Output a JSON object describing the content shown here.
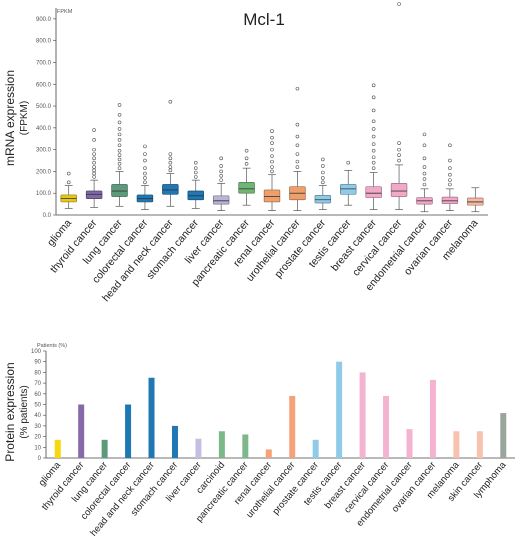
{
  "chart_data": [
    {
      "type": "box",
      "title": "Mcl-1",
      "ylabel": "mRNA expression",
      "yunit": "(FPKM)",
      "axis_unit": "FPKM",
      "ylim": [
        0,
        950
      ],
      "yticks": [
        "900.0",
        "800.0",
        "700.0",
        "600.0",
        "500.0",
        "400.0",
        "300.0",
        "200.0",
        "100.0",
        "0.0"
      ],
      "categories": [
        "glioma",
        "thyroid cancer",
        "lung cancer",
        "colorectal cancer",
        "head and neck cancer",
        "stomach cancer",
        "liver cancer",
        "pancreatic cancer",
        "renal cancer",
        "urothelial cancer",
        "prostate cancer",
        "testis cancer",
        "breast cancer",
        "cervical cancer",
        "endometrial cancer",
        "ovarian cancer",
        "melanoma"
      ],
      "colors": [
        "#e6c619",
        "#7f68a8",
        "#5d9a7c",
        "#1f78b4",
        "#1f78b4",
        "#1f78b4",
        "#b9b4d8",
        "#6fb575",
        "#ef9f6b",
        "#ef9f6b",
        "#8fcbe8",
        "#8fcbe8",
        "#f2a9c8",
        "#f2a9c8",
        "#f2a9c8",
        "#f2a9c8",
        "#f5b8a0"
      ],
      "boxes": [
        {
          "whislo": 30,
          "q1": 60,
          "med": 75,
          "q3": 92,
          "whishi": 135,
          "fliers": [
            150,
            190
          ]
        },
        {
          "whislo": 35,
          "q1": 75,
          "med": 95,
          "q3": 110,
          "whishi": 160,
          "fliers": [
            175,
            190,
            205,
            220,
            240,
            260,
            280,
            300,
            345,
            390
          ]
        },
        {
          "whislo": 40,
          "q1": 85,
          "med": 110,
          "q3": 140,
          "whishi": 200,
          "fliers": [
            215,
            235,
            255,
            275,
            295,
            320,
            345,
            370,
            395,
            425,
            460,
            505
          ]
        },
        {
          "whislo": 25,
          "q1": 60,
          "med": 75,
          "q3": 92,
          "whishi": 135,
          "fliers": [
            150,
            170,
            190,
            215,
            250,
            280,
            315
          ]
        },
        {
          "whislo": 40,
          "q1": 95,
          "med": 115,
          "q3": 140,
          "whishi": 190,
          "fliers": [
            205,
            220,
            240,
            260,
            280,
            520
          ]
        },
        {
          "whislo": 30,
          "q1": 70,
          "med": 88,
          "q3": 110,
          "whishi": 160,
          "fliers": [
            175,
            195,
            215,
            240
          ]
        },
        {
          "whislo": 20,
          "q1": 50,
          "med": 65,
          "q3": 88,
          "whishi": 145,
          "fliers": [
            160,
            180,
            200,
            225,
            260
          ]
        },
        {
          "whislo": 45,
          "q1": 100,
          "med": 120,
          "q3": 150,
          "whishi": 215,
          "fliers": [
            235,
            260,
            295
          ]
        },
        {
          "whislo": 20,
          "q1": 60,
          "med": 85,
          "q3": 115,
          "whishi": 185,
          "fliers": [
            200,
            220,
            245,
            270,
            300,
            330,
            355,
            385
          ]
        },
        {
          "whislo": 20,
          "q1": 70,
          "med": 100,
          "q3": 130,
          "whishi": 200,
          "fliers": [
            220,
            245,
            280,
            320,
            360,
            415,
            580
          ]
        },
        {
          "whislo": 25,
          "q1": 55,
          "med": 70,
          "q3": 90,
          "whishi": 135,
          "fliers": [
            150,
            170,
            195,
            225,
            255
          ]
        },
        {
          "whislo": 45,
          "q1": 95,
          "med": 120,
          "q3": 140,
          "whishi": 205,
          "fliers": [
            240
          ]
        },
        {
          "whislo": 25,
          "q1": 80,
          "med": 100,
          "q3": 130,
          "whishi": 195,
          "fliers": [
            215,
            240,
            265,
            295,
            325,
            360,
            395,
            430,
            480,
            540,
            595
          ]
        },
        {
          "whislo": 25,
          "q1": 85,
          "med": 110,
          "q3": 145,
          "whishi": 230,
          "fliers": [
            250,
            275,
            300,
            330,
            975
          ]
        },
        {
          "whislo": 15,
          "q1": 50,
          "med": 65,
          "q3": 80,
          "whishi": 120,
          "fliers": [
            140,
            165,
            190,
            220,
            260,
            320,
            370
          ]
        },
        {
          "whislo": 20,
          "q1": 52,
          "med": 65,
          "q3": 82,
          "whishi": 120,
          "fliers": [
            140,
            160,
            185,
            215,
            250,
            320
          ]
        },
        {
          "whislo": 15,
          "q1": 45,
          "med": 60,
          "q3": 78,
          "whishi": 125,
          "fliers": []
        }
      ]
    },
    {
      "type": "bar",
      "ylabel": "Protein expression",
      "yunit": "(% patients)",
      "axis_unit": "Patients (%)",
      "ylim": [
        0,
        100
      ],
      "yticks": [
        "100",
        "90",
        "80",
        "70",
        "60",
        "50",
        "40",
        "30",
        "20",
        "10",
        "0"
      ],
      "categories": [
        "glioma",
        "thyroid cancer",
        "lung cancer",
        "colorectal cancer",
        "head and neck cancer",
        "stomach cancer",
        "liver cancer",
        "carcinoid",
        "pancreatic cancer",
        "renal cancer",
        "urothelial cancer",
        "prostate cancer",
        "testis cancer",
        "breast cancer",
        "cervical cancer",
        "endometrial cancer",
        "ovarian cancer",
        "melanoma",
        "skin cancer",
        "lymphoma"
      ],
      "values": [
        17,
        50,
        17,
        50,
        75,
        30,
        18,
        25,
        22,
        8,
        58,
        17,
        90,
        80,
        58,
        27,
        73,
        25,
        25,
        42
      ],
      "colors": [
        "#f5d80f",
        "#8769a9",
        "#5d9a7c",
        "#1f78b4",
        "#1f78b4",
        "#1f78b4",
        "#c4bfe0",
        "#7db88a",
        "#7db88a",
        "#f5a27a",
        "#f5a27a",
        "#8fcbe8",
        "#8fcbe8",
        "#f5b3d2",
        "#f5b3d2",
        "#f5b3d2",
        "#f5b3d2",
        "#f8c3ae",
        "#f8c3ae",
        "#9aa59d"
      ]
    }
  ]
}
